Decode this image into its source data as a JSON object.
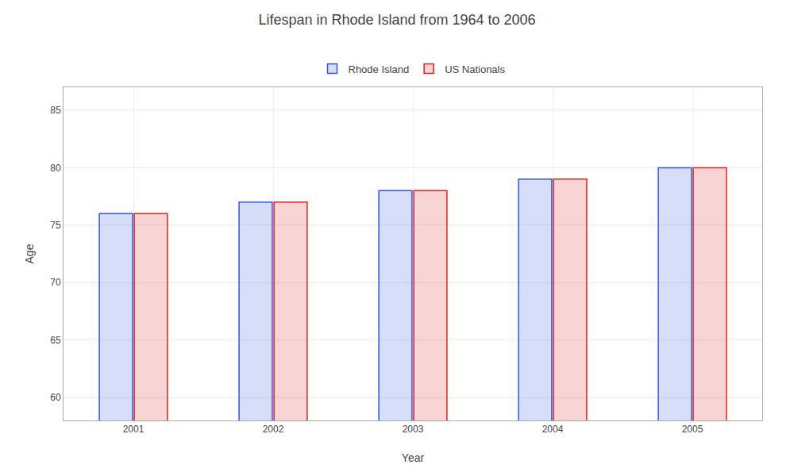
{
  "chart_data": {
    "type": "bar",
    "title": "Lifespan in Rhode Island from 1964 to 2006",
    "xlabel": "Year",
    "ylabel": "Age",
    "categories": [
      "2001",
      "2002",
      "2003",
      "2004",
      "2005"
    ],
    "series": [
      {
        "name": "Rhode Island",
        "color": "#3355dd",
        "values": [
          76,
          77,
          78,
          79,
          80
        ]
      },
      {
        "name": "US Nationals",
        "color": "#dd2222",
        "values": [
          76,
          77,
          78,
          79,
          80
        ]
      }
    ],
    "ylim": [
      58,
      87
    ],
    "yticks": [
      60,
      65,
      70,
      75,
      80,
      85
    ],
    "grid": true,
    "legend": "top"
  }
}
